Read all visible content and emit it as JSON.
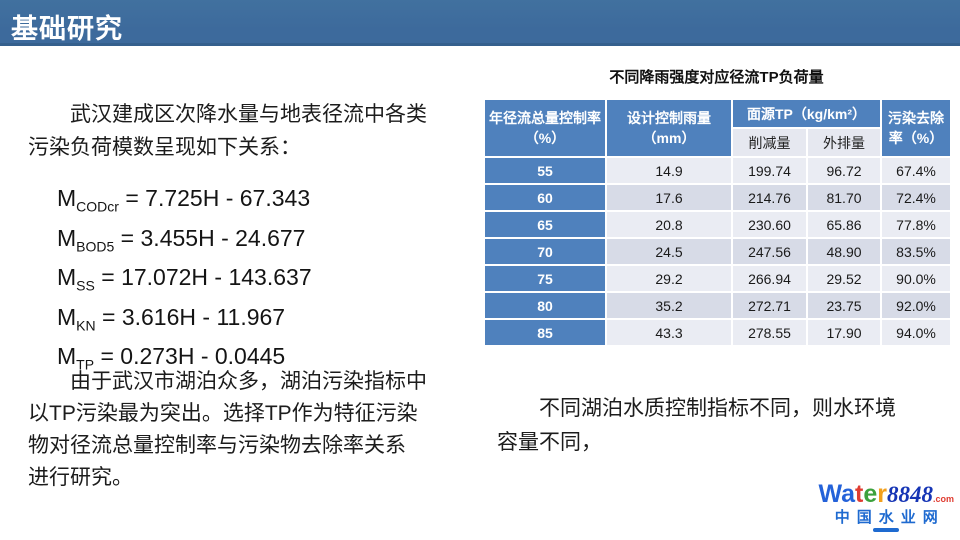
{
  "colors": {
    "banner_blue": "#3d6a9c",
    "banner_edge": "#35608d",
    "header_blue": "#4f81bd",
    "subheader_bg": "#e6e8f0",
    "row_light": "#eaecf3",
    "row_dark": "#d7dbe7",
    "text_dark": "#1f1f1f",
    "logo_number_color": "#1635b5",
    "logo_tld_color": "#e03c31",
    "logo_subtitle_color": "#1e6ad0"
  },
  "banner": {
    "title": "基础研究"
  },
  "left": {
    "p1_lines": [
      "　　武汉建成区次降水量与地表径流中各类",
      "污染负荷模数呈现如下关系："
    ],
    "formulas": [
      {
        "m": "M",
        "sub": "CODcr",
        "rhs": " = 7.725H - 67.343"
      },
      {
        "m": "M",
        "sub": "BOD5",
        "rhs": " = 3.455H - 24.677"
      },
      {
        "m": "M",
        "sub": "SS",
        "rhs": " = 17.072H - 143.637"
      },
      {
        "m": "M",
        "sub": "KN",
        "rhs": " = 3.616H - 11.967"
      },
      {
        "m": "M",
        "sub": "TP",
        "rhs": " = 0.273H - 0.0445"
      }
    ],
    "p2_lines": [
      "　　由于武汉市湖泊众多，湖泊污染指标中",
      "以TP污染最为突出。选择TP作为特征污染",
      "物对径流总量控制率与污染物去除率关系",
      "进行研究。"
    ]
  },
  "table": {
    "title": "不同降雨强度对应径流TP负荷量",
    "col_runoff": "年径流总量控制率（%）",
    "col_rain": "设计控制雨量（mm）",
    "col_tp_group": "面源TP（kg/km²）",
    "col_tp_reduced": "削减量",
    "col_tp_discharged": "外排量",
    "col_removal": "污染去除率（%）",
    "rows": [
      [
        "55",
        "14.9",
        "199.74",
        "96.72",
        "67.4%"
      ],
      [
        "60",
        "17.6",
        "214.76",
        "81.70",
        "72.4%"
      ],
      [
        "65",
        "20.8",
        "230.60",
        "65.86",
        "77.8%"
      ],
      [
        "70",
        "24.5",
        "247.56",
        "48.90",
        "83.5%"
      ],
      [
        "75",
        "29.2",
        "266.94",
        "29.52",
        "90.0%"
      ],
      [
        "80",
        "35.2",
        "272.71",
        "23.75",
        "92.0%"
      ],
      [
        "85",
        "43.3",
        "278.55",
        "17.90",
        "94.0%"
      ]
    ]
  },
  "right": {
    "p3_lines": [
      "　　不同湖泊水质控制指标不同，则水环境",
      "容量不同，"
    ]
  },
  "logo": {
    "letters": [
      {
        "ch": "W",
        "color": "#2462d9"
      },
      {
        "ch": "a",
        "color": "#2462d9"
      },
      {
        "ch": "t",
        "color": "#e03c31"
      },
      {
        "ch": "e",
        "color": "#3ca13c"
      },
      {
        "ch": "r",
        "color": "#f2a01d"
      }
    ],
    "number": "8848",
    "tld": ".com",
    "subtitle": "中国水业网"
  }
}
